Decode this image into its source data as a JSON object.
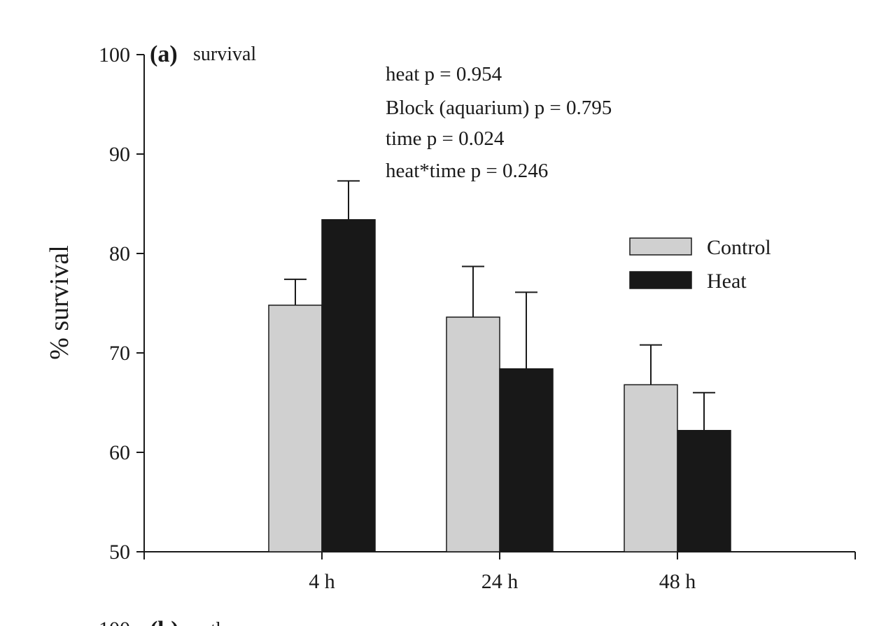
{
  "panel_label": "(a)",
  "panel_title": "survival",
  "next_panel_label_partial": "(b)",
  "next_panel_title_partial": "eath",
  "next_panel_tick_partial": "100",
  "stats": [
    "heat p = 0.954",
    "Block (aquarium) p = 0.795",
    "time p = 0.024",
    "heat*time p = 0.246"
  ],
  "colors": {
    "control": "#d0d0d0",
    "heat": "#181818",
    "axis": "#1a1a1a"
  },
  "chart_data": {
    "type": "bar",
    "title": "(a) survival",
    "xlabel": "",
    "ylabel": "% survival",
    "ylim": [
      50,
      100
    ],
    "yticks": [
      50,
      60,
      70,
      80,
      90,
      100
    ],
    "categories": [
      "4 h",
      "24 h",
      "48 h"
    ],
    "series": [
      {
        "name": "Control",
        "values": [
          74.8,
          73.6,
          66.8
        ],
        "errors": [
          2.6,
          5.1,
          4.0
        ]
      },
      {
        "name": "Heat",
        "values": [
          83.4,
          68.4,
          62.2
        ],
        "errors": [
          3.9,
          7.7,
          3.8
        ]
      }
    ],
    "legend_position": "right",
    "grid": false
  }
}
